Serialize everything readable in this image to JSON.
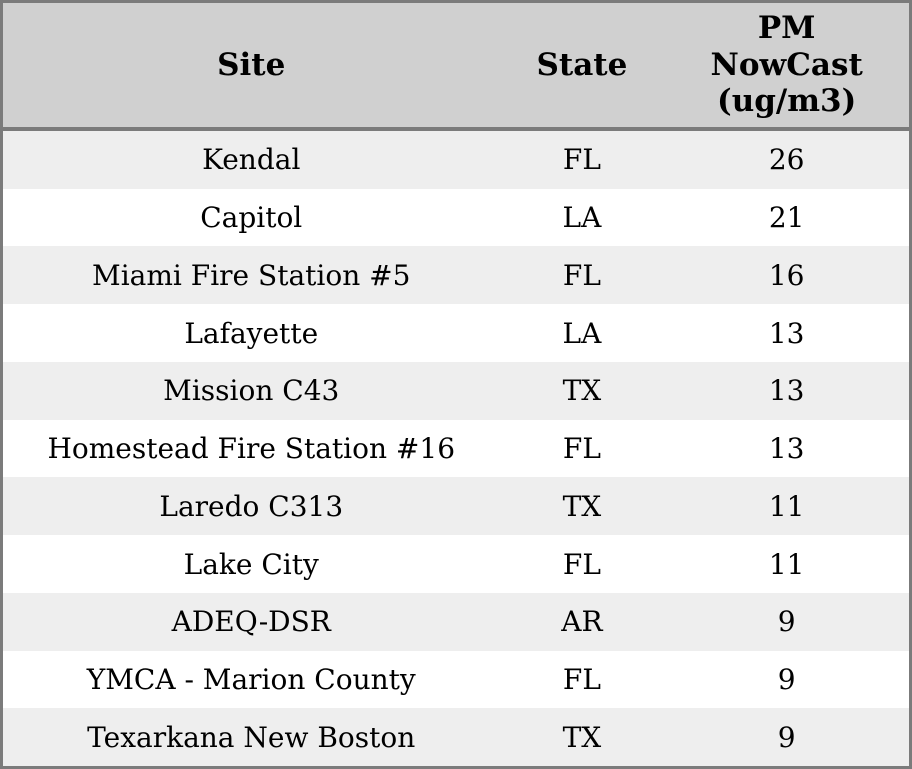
{
  "colors": {
    "border": "#7b7b7b",
    "header_bg": "#d0d0d0",
    "row_alt_bg": "#eeeeee",
    "row_bg": "#ffffff",
    "text": "#000000"
  },
  "chart_data": {
    "type": "table",
    "columns": [
      {
        "key": "site",
        "label": "Site"
      },
      {
        "key": "state",
        "label": "State"
      },
      {
        "key": "pm",
        "label": "PM NowCast (ug/m3)"
      }
    ],
    "rows": [
      {
        "site": "Kendal",
        "state": "FL",
        "pm": 26
      },
      {
        "site": "Capitol",
        "state": "LA",
        "pm": 21
      },
      {
        "site": "Miami Fire Station #5",
        "state": "FL",
        "pm": 16
      },
      {
        "site": "Lafayette",
        "state": "LA",
        "pm": 13
      },
      {
        "site": "Mission C43",
        "state": "TX",
        "pm": 13
      },
      {
        "site": "Homestead Fire Station #16",
        "state": "FL",
        "pm": 13
      },
      {
        "site": "Laredo C313",
        "state": "TX",
        "pm": 11
      },
      {
        "site": "Lake City",
        "state": "FL",
        "pm": 11
      },
      {
        "site": "ADEQ-DSR",
        "state": "AR",
        "pm": 9
      },
      {
        "site": "YMCA - Marion County",
        "state": "FL",
        "pm": 9
      },
      {
        "site": "Texarkana New Boston",
        "state": "TX",
        "pm": 9
      }
    ],
    "layout": {
      "striped": true,
      "first_row_shaded": true,
      "header_lines_pm_column": [
        "PM",
        "NowCast",
        "(ug/m3)"
      ]
    }
  }
}
